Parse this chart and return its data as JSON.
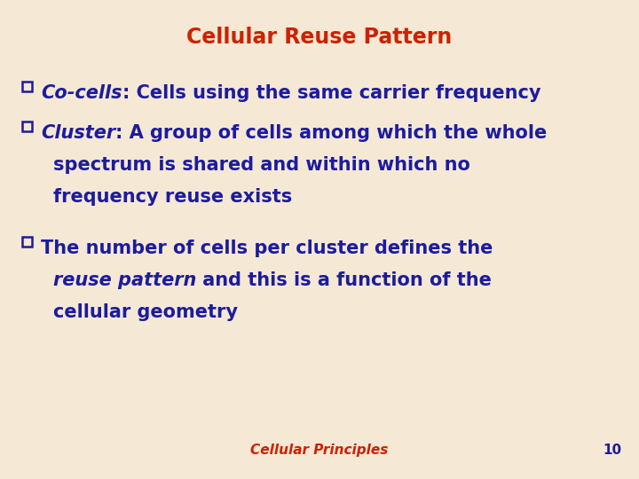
{
  "title": "Cellular Reuse Pattern",
  "title_color": "#cc2200",
  "title_fontsize": 17,
  "background_color": "#f5e8d5",
  "text_color_blue": "#1c1c9c",
  "text_color_red": "#cc2200",
  "footer_text": "Cellular Principles",
  "footer_page": "10",
  "main_fontsize": 15,
  "footer_fontsize": 11,
  "fig_width": 7.2,
  "fig_height": 5.4,
  "fig_dpi": 100
}
